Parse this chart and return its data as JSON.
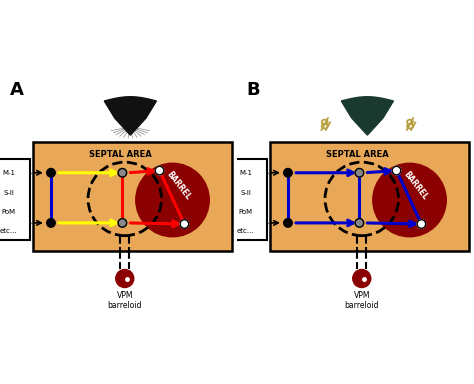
{
  "fig_width": 4.74,
  "fig_height": 3.84,
  "bg_color": "#ffffff",
  "panel_bg": "#e8a857",
  "barrel_color": "#8b0000",
  "barrel_text_color": "#ffffff",
  "panel_A_label": "A",
  "panel_B_label": "B",
  "label_box_text": [
    "M-1",
    "S-II",
    "PoM",
    "etc..."
  ],
  "septal_area_label": "SEPTAL AREA",
  "barrel_label": "BARREL",
  "vpm_label": "VPM\nbarreloid",
  "red_line_color": "#ff0000",
  "blue_line_color": "#0000cc",
  "yellow_line_color": "#ffff00",
  "mouse_color_A": "#111111",
  "mouse_color_B": "#1a3a30",
  "scissors_color": "#b8a040",
  "node_gray": "#888888"
}
